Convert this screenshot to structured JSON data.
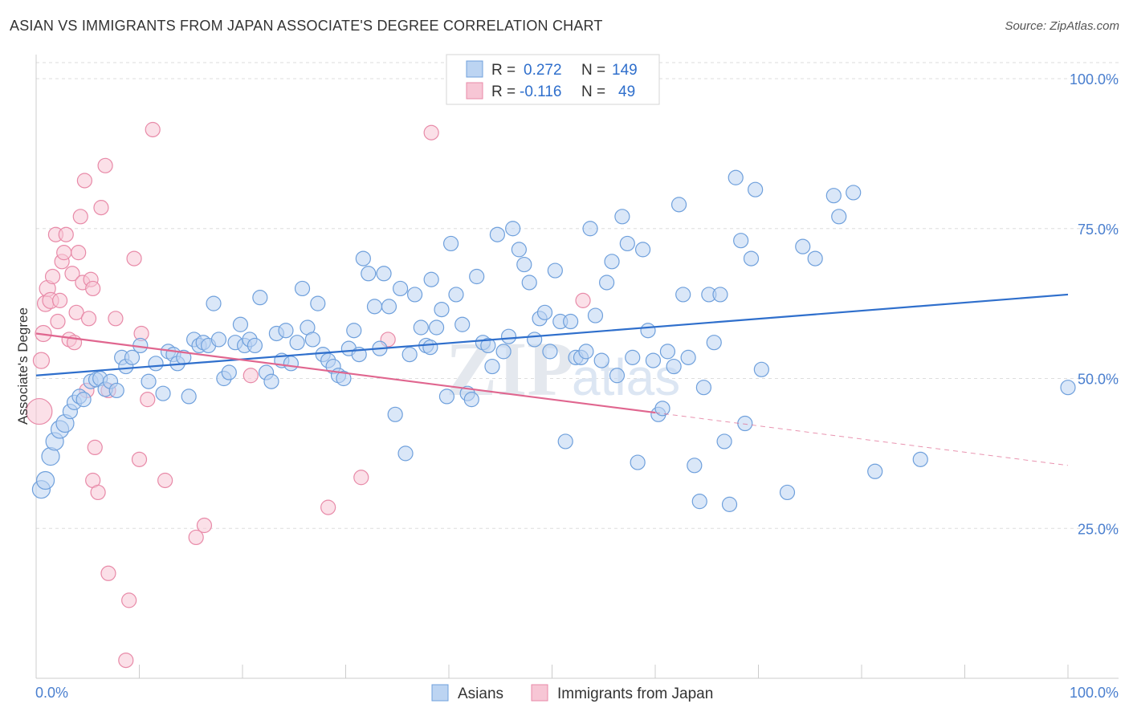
{
  "header": {
    "title": "ASIAN VS IMMIGRANTS FROM JAPAN ASSOCIATE'S DEGREE CORRELATION CHART",
    "source": "Source: ZipAtlas.com"
  },
  "watermark": {
    "zip": "ZIP",
    "atlas": "atlas"
  },
  "stats_box": [
    {
      "r_label": "R =",
      "r_value": "0.272",
      "n_label": "N =",
      "n_value": "149",
      "color": "#6fa0dc"
    },
    {
      "r_label": "R =",
      "r_value": "-0.116",
      "n_label": "N =",
      "n_value": "49",
      "color": "#e88aa8"
    }
  ],
  "colors": {
    "asian_fill": "#bcd4f2",
    "asian_stroke": "#6fa0dc",
    "asian_line": "#2f6fcc",
    "japan_fill": "#f7c6d5",
    "japan_stroke": "#e88aa8",
    "japan_line": "#e0668f",
    "axis_text": "#4a7fcf",
    "grid": "#dddddd"
  },
  "chart_data": {
    "type": "scatter",
    "title": "ASIAN VS IMMIGRANTS FROM JAPAN ASSOCIATE'S DEGREE CORRELATION CHART",
    "xlabel": "",
    "ylabel": "Associate's Degree",
    "xlim": [
      0,
      100
    ],
    "ylim": [
      0,
      100
    ],
    "x_tick_labels": [
      "0.0%",
      "100.0%"
    ],
    "y_ticks": [
      25,
      50,
      75,
      100
    ],
    "y_tick_labels": [
      "25.0%",
      "50.0%",
      "75.0%",
      "100.0%"
    ],
    "grid": true,
    "legend_position": "bottom",
    "series": [
      {
        "name": "Asians",
        "r": 0.272,
        "n": 149,
        "trend": {
          "x": [
            0,
            100
          ],
          "y": [
            50.5,
            64.0
          ],
          "dashed_from": null
        },
        "points": [
          [
            0.5,
            31.5
          ],
          [
            0.9,
            33.0
          ],
          [
            1.4,
            37.0
          ],
          [
            1.8,
            39.5
          ],
          [
            2.3,
            41.5
          ],
          [
            2.8,
            42.5
          ],
          [
            3.3,
            44.5
          ],
          [
            3.7,
            46.0
          ],
          [
            4.2,
            47.0
          ],
          [
            4.6,
            46.5
          ],
          [
            5.3,
            49.5
          ],
          [
            5.8,
            49.8
          ],
          [
            6.2,
            50.0
          ],
          [
            6.7,
            48.2
          ],
          [
            7.2,
            49.5
          ],
          [
            7.8,
            48.0
          ],
          [
            8.3,
            53.5
          ],
          [
            8.7,
            52.0
          ],
          [
            9.3,
            53.5
          ],
          [
            10.1,
            55.5
          ],
          [
            10.9,
            49.5
          ],
          [
            11.6,
            52.5
          ],
          [
            12.3,
            47.5
          ],
          [
            12.8,
            54.5
          ],
          [
            13.3,
            54.0
          ],
          [
            13.7,
            52.5
          ],
          [
            14.3,
            53.5
          ],
          [
            14.8,
            47.0
          ],
          [
            15.3,
            56.5
          ],
          [
            15.8,
            55.5
          ],
          [
            16.2,
            56.0
          ],
          [
            16.7,
            55.5
          ],
          [
            17.2,
            62.5
          ],
          [
            17.7,
            56.5
          ],
          [
            18.2,
            50.0
          ],
          [
            18.7,
            51.0
          ],
          [
            19.3,
            56.0
          ],
          [
            19.8,
            59.0
          ],
          [
            20.2,
            55.5
          ],
          [
            20.7,
            56.5
          ],
          [
            21.2,
            55.5
          ],
          [
            21.7,
            63.5
          ],
          [
            22.3,
            51.0
          ],
          [
            22.8,
            49.5
          ],
          [
            23.3,
            57.5
          ],
          [
            23.8,
            53.0
          ],
          [
            24.2,
            58.0
          ],
          [
            24.7,
            52.5
          ],
          [
            25.3,
            56.0
          ],
          [
            25.8,
            65.0
          ],
          [
            26.3,
            58.5
          ],
          [
            26.8,
            56.5
          ],
          [
            27.3,
            62.5
          ],
          [
            27.8,
            54.0
          ],
          [
            28.3,
            53.0
          ],
          [
            28.8,
            52.0
          ],
          [
            29.3,
            50.5
          ],
          [
            29.8,
            50.0
          ],
          [
            30.3,
            55.0
          ],
          [
            30.8,
            58.0
          ],
          [
            31.3,
            54.0
          ],
          [
            31.7,
            70.0
          ],
          [
            32.2,
            67.5
          ],
          [
            32.8,
            62.0
          ],
          [
            33.3,
            55.0
          ],
          [
            33.7,
            67.5
          ],
          [
            34.2,
            62.0
          ],
          [
            34.8,
            44.0
          ],
          [
            35.3,
            65.0
          ],
          [
            35.8,
            37.5
          ],
          [
            36.2,
            54.0
          ],
          [
            36.7,
            64.0
          ],
          [
            37.3,
            58.5
          ],
          [
            37.8,
            55.5
          ],
          [
            38.3,
            66.5
          ],
          [
            38.8,
            58.5
          ],
          [
            39.3,
            61.5
          ],
          [
            39.8,
            47.0
          ],
          [
            40.2,
            72.5
          ],
          [
            40.7,
            64.0
          ],
          [
            41.3,
            59.0
          ],
          [
            41.8,
            47.5
          ],
          [
            42.2,
            46.5
          ],
          [
            42.7,
            67.0
          ],
          [
            43.3,
            56.0
          ],
          [
            43.8,
            55.5
          ],
          [
            44.2,
            52.0
          ],
          [
            44.7,
            74.0
          ],
          [
            45.3,
            54.5
          ],
          [
            45.8,
            57.0
          ],
          [
            46.2,
            75.0
          ],
          [
            46.8,
            71.5
          ],
          [
            47.3,
            69.0
          ],
          [
            47.8,
            66.0
          ],
          [
            48.3,
            56.5
          ],
          [
            48.8,
            60.0
          ],
          [
            49.3,
            61.0
          ],
          [
            49.8,
            54.5
          ],
          [
            50.3,
            68.0
          ],
          [
            50.8,
            59.5
          ],
          [
            51.3,
            39.5
          ],
          [
            51.8,
            59.5
          ],
          [
            52.3,
            53.5
          ],
          [
            52.8,
            53.5
          ],
          [
            53.3,
            54.5
          ],
          [
            53.7,
            75.0
          ],
          [
            54.2,
            60.5
          ],
          [
            54.8,
            53.0
          ],
          [
            55.3,
            66.0
          ],
          [
            55.8,
            69.5
          ],
          [
            56.3,
            50.5
          ],
          [
            56.8,
            77.0
          ],
          [
            57.3,
            72.5
          ],
          [
            57.8,
            53.5
          ],
          [
            58.3,
            36.0
          ],
          [
            58.8,
            71.5
          ],
          [
            59.3,
            58.0
          ],
          [
            59.8,
            53.0
          ],
          [
            60.3,
            44.0
          ],
          [
            60.7,
            45.0
          ],
          [
            61.2,
            54.5
          ],
          [
            61.8,
            52.0
          ],
          [
            62.3,
            79.0
          ],
          [
            62.7,
            64.0
          ],
          [
            63.2,
            53.5
          ],
          [
            63.8,
            35.5
          ],
          [
            64.3,
            29.5
          ],
          [
            64.7,
            48.5
          ],
          [
            65.2,
            64.0
          ],
          [
            65.7,
            56.0
          ],
          [
            66.3,
            64.0
          ],
          [
            66.7,
            39.5
          ],
          [
            67.2,
            29.0
          ],
          [
            67.8,
            83.5
          ],
          [
            68.3,
            73.0
          ],
          [
            68.7,
            42.5
          ],
          [
            69.3,
            70.0
          ],
          [
            69.7,
            81.5
          ],
          [
            70.3,
            51.5
          ],
          [
            72.8,
            31.0
          ],
          [
            74.3,
            72.0
          ],
          [
            75.5,
            70.0
          ],
          [
            77.3,
            80.5
          ],
          [
            77.8,
            77.0
          ],
          [
            79.2,
            81.0
          ],
          [
            81.3,
            34.5
          ],
          [
            85.7,
            36.5
          ],
          [
            100.0,
            48.5
          ],
          [
            38.2,
            55.2
          ]
        ]
      },
      {
        "name": "Immigrants from Japan",
        "r": -0.116,
        "n": 49,
        "trend": {
          "x": [
            0,
            100
          ],
          "y": [
            57.5,
            35.5
          ],
          "dashed_from": 60
        },
        "points": [
          [
            0.3,
            44.5
          ],
          [
            0.5,
            53.0
          ],
          [
            0.7,
            57.5
          ],
          [
            0.9,
            62.5
          ],
          [
            1.1,
            65.0
          ],
          [
            1.4,
            63.0
          ],
          [
            1.6,
            67.0
          ],
          [
            1.9,
            74.0
          ],
          [
            2.1,
            59.5
          ],
          [
            2.3,
            63.0
          ],
          [
            2.5,
            69.5
          ],
          [
            2.7,
            71.0
          ],
          [
            2.9,
            74.0
          ],
          [
            3.2,
            56.5
          ],
          [
            3.5,
            67.5
          ],
          [
            3.7,
            56.0
          ],
          [
            3.9,
            61.0
          ],
          [
            4.1,
            71.0
          ],
          [
            4.3,
            77.0
          ],
          [
            4.5,
            66.0
          ],
          [
            4.7,
            83.0
          ],
          [
            4.9,
            48.0
          ],
          [
            5.1,
            60.0
          ],
          [
            5.3,
            66.5
          ],
          [
            5.5,
            65.0
          ],
          [
            5.7,
            38.5
          ],
          [
            5.5,
            33.0
          ],
          [
            6.0,
            31.0
          ],
          [
            6.3,
            78.5
          ],
          [
            6.7,
            85.5
          ],
          [
            7.0,
            17.5
          ],
          [
            7.7,
            60.0
          ],
          [
            8.7,
            3.0
          ],
          [
            9.0,
            13.0
          ],
          [
            9.5,
            70.0
          ],
          [
            10.0,
            36.5
          ],
          [
            10.2,
            57.5
          ],
          [
            10.8,
            46.5
          ],
          [
            11.3,
            91.5
          ],
          [
            12.5,
            33.0
          ],
          [
            15.5,
            23.5
          ],
          [
            16.3,
            25.5
          ],
          [
            20.8,
            50.5
          ],
          [
            28.3,
            28.5
          ],
          [
            31.5,
            33.5
          ],
          [
            34.1,
            56.5
          ],
          [
            38.3,
            91.0
          ],
          [
            7.0,
            48.0
          ],
          [
            53.0,
            63.0
          ]
        ]
      }
    ]
  },
  "legend": {
    "items": [
      "Asians",
      "Immigrants from Japan"
    ]
  }
}
